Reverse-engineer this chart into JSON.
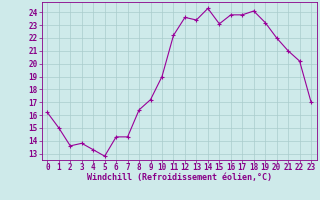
{
  "x": [
    0,
    1,
    2,
    3,
    4,
    5,
    6,
    7,
    8,
    9,
    10,
    11,
    12,
    13,
    14,
    15,
    16,
    17,
    18,
    19,
    20,
    21,
    22,
    23
  ],
  "y": [
    16.2,
    15.0,
    13.6,
    13.8,
    13.3,
    12.8,
    14.3,
    14.3,
    16.4,
    17.2,
    19.0,
    22.2,
    23.6,
    23.4,
    24.3,
    23.1,
    23.8,
    23.8,
    24.1,
    23.2,
    22.0,
    21.0,
    20.2,
    17.0
  ],
  "line_color": "#990099",
  "marker": "+",
  "marker_size": 3,
  "bg_color": "#ceeaea",
  "grid_color": "#aacccc",
  "xlabel": "Windchill (Refroidissement éolien,°C)",
  "xlabel_fontsize": 6.0,
  "tick_fontsize": 5.5,
  "ylim": [
    12.5,
    24.8
  ],
  "yticks": [
    13,
    14,
    15,
    16,
    17,
    18,
    19,
    20,
    21,
    22,
    23,
    24
  ],
  "xtick_labels": [
    "0",
    "1",
    "2",
    "3",
    "4",
    "5",
    "6",
    "7",
    "8",
    "9",
    "10",
    "11",
    "12",
    "13",
    "14",
    "15",
    "16",
    "17",
    "18",
    "19",
    "20",
    "21",
    "22",
    "23"
  ],
  "line_width": 0.8
}
